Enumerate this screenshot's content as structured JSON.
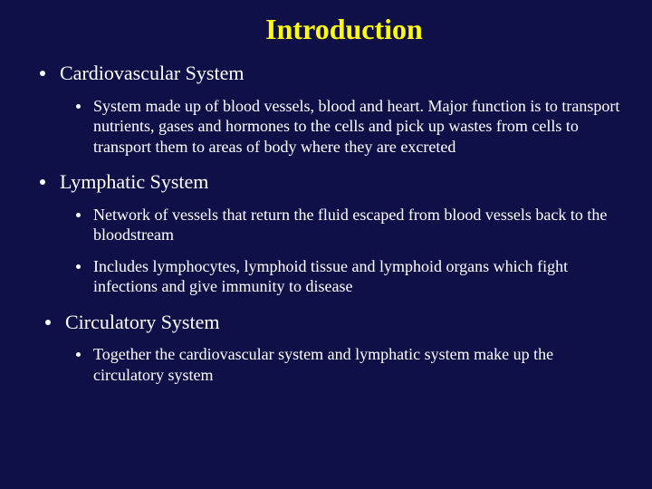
{
  "slide": {
    "background_color": "#101048",
    "title_color": "#ffff00",
    "text_color": "#ffffff",
    "title": "Introduction",
    "sections": [
      {
        "heading": "Cardiovascular System",
        "points": [
          "System made up of blood vessels, blood and heart. Major function is to transport nutrients, gases and hormones to the cells and pick up wastes from cells to transport them to areas of body where they are excreted"
        ]
      },
      {
        "heading": "Lymphatic System",
        "points": [
          "Network of vessels that return the fluid escaped from blood vessels back to the bloodstream",
          "Includes lymphocytes, lymphoid tissue and lymphoid organs which fight infections and give immunity to disease"
        ]
      },
      {
        "heading": "Circulatory System",
        "points": [
          "Together the cardiovascular system and lymphatic system make up the circulatory system"
        ]
      }
    ]
  }
}
